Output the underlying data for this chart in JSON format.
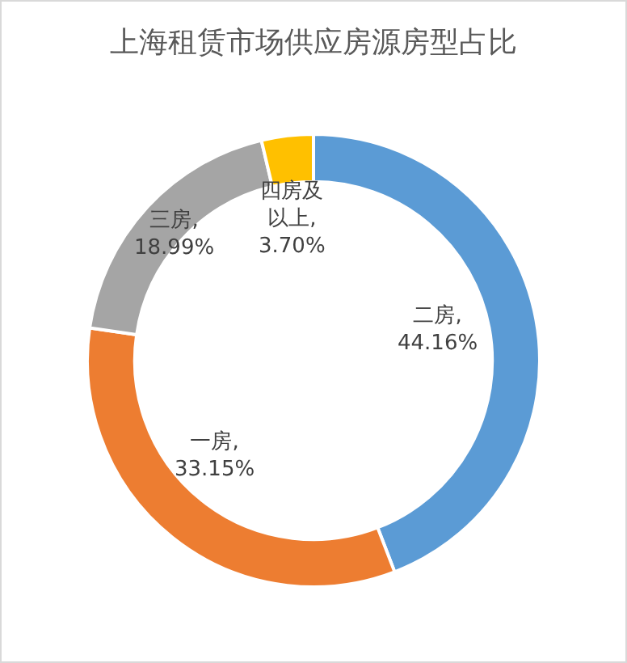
{
  "chart_data": {
    "type": "donut",
    "title": "上海租赁市场供应房源房型占比",
    "categories": [
      "二房",
      "一房",
      "三房",
      "四房及以上"
    ],
    "values": [
      44.16,
      33.15,
      18.99,
      3.7
    ],
    "value_labels": [
      ",\n44.16%",
      ",\n33.15%",
      ",\n18.99%",
      ",\n3.70%"
    ],
    "colors": [
      "#5b9bd5",
      "#ed7d31",
      "#a5a5a5",
      "#ffc000"
    ],
    "legend": false
  }
}
